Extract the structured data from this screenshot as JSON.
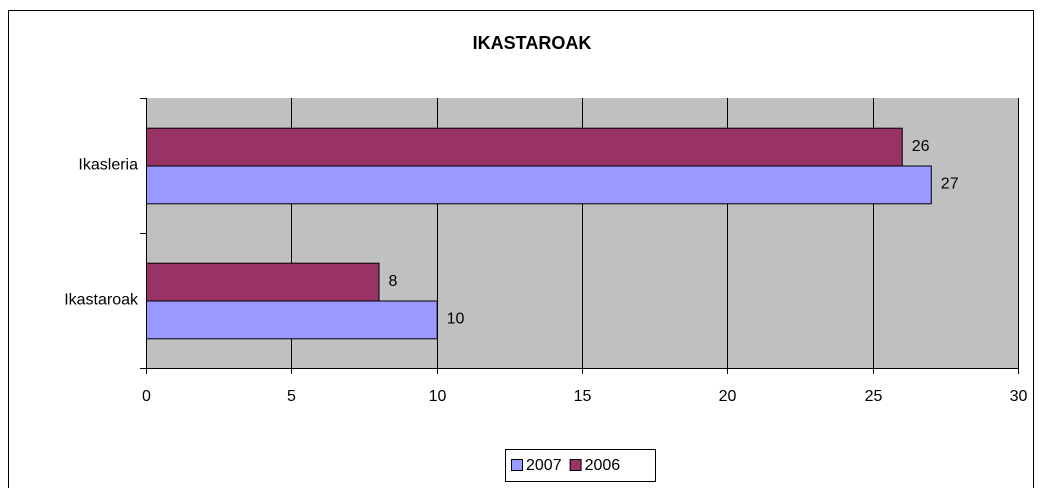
{
  "chart_data": {
    "type": "bar",
    "orientation": "horizontal",
    "title": "IKASTAROAK",
    "categories": [
      "Ikasleria",
      "Ikastaroak"
    ],
    "series": [
      {
        "name": "2007",
        "color": "#9999ff",
        "values": [
          27,
          10
        ]
      },
      {
        "name": "2006",
        "color": "#993366",
        "values": [
          26,
          8
        ]
      }
    ],
    "xlim": [
      0,
      30
    ],
    "xticks": [
      0,
      5,
      10,
      15,
      20,
      25,
      30
    ],
    "grid": true,
    "legend": "bottom"
  }
}
